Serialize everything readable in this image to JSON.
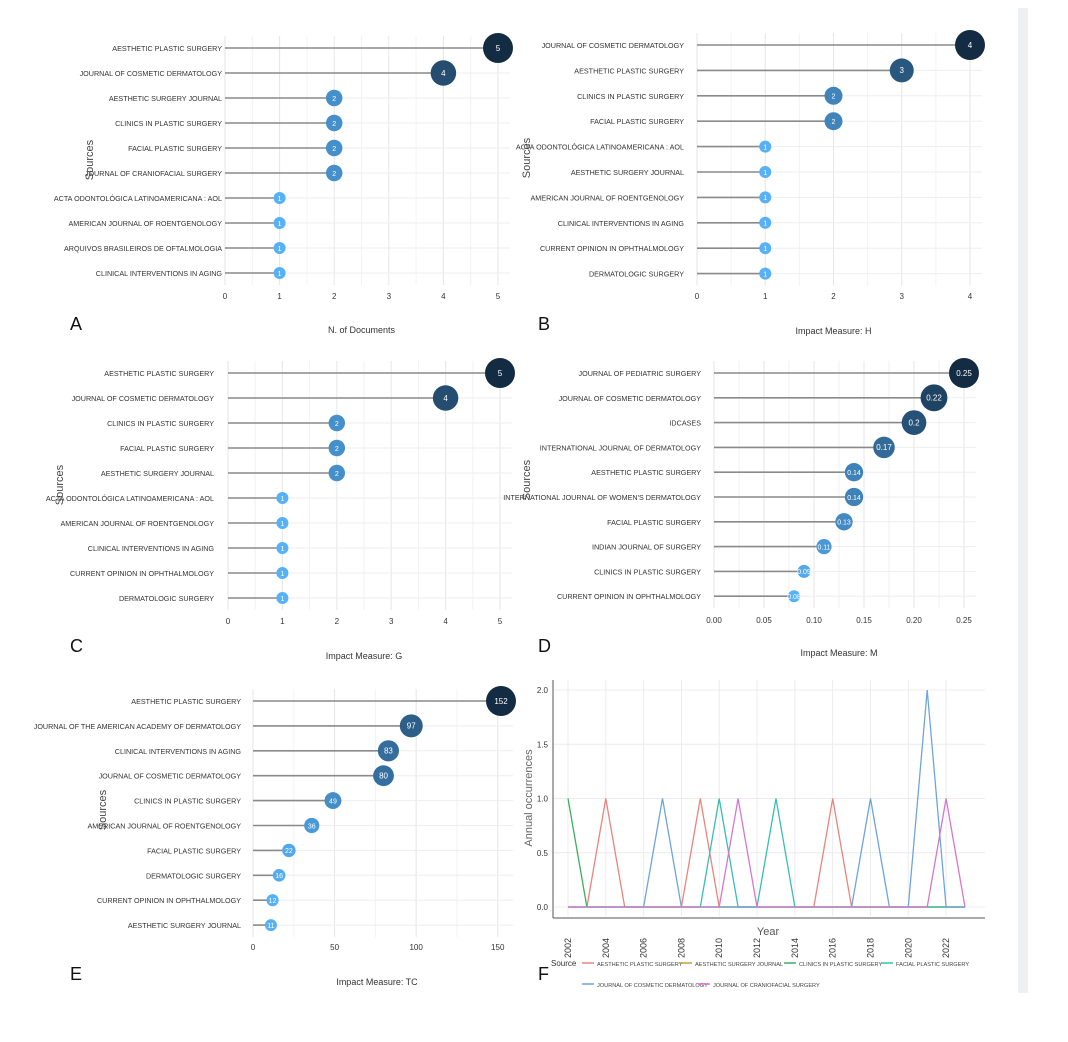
{
  "figure": {
    "panel_letters": [
      "A",
      "B",
      "C",
      "D",
      "E",
      "F"
    ]
  },
  "chart_data": [
    {
      "panel": "A",
      "type": "lollipop",
      "ylabel": "Sources",
      "xlabel": "N. of Documents",
      "xlim": [
        0,
        5
      ],
      "xticks": [
        "0",
        "1",
        "2",
        "3",
        "4",
        "5"
      ],
      "categories": [
        "AESTHETIC PLASTIC SURGERY",
        "JOURNAL OF COSMETIC DERMATOLOGY",
        "AESTHETIC SURGERY JOURNAL",
        "CLINICS IN PLASTIC SURGERY",
        "FACIAL PLASTIC SURGERY",
        "JOURNAL OF CRANIOFACIAL SURGERY",
        "ACTA ODONTOLÓGICA LATINOAMERICANA : AOL",
        "AMERICAN JOURNAL OF ROENTGENOLOGY",
        "ARQUIVOS BRASILEIROS DE OFTALMOLOGIA",
        "CLINICAL INTERVENTIONS IN AGING"
      ],
      "values": [
        5,
        4,
        2,
        2,
        2,
        2,
        1,
        1,
        1,
        1
      ],
      "labels": [
        "5",
        "4",
        "2",
        "2",
        "2",
        "2",
        "1",
        "1",
        "1",
        "1"
      ]
    },
    {
      "panel": "B",
      "type": "lollipop",
      "ylabel": "Sources",
      "xlabel": "Impact Measure: H",
      "xlim": [
        0,
        4
      ],
      "xticks": [
        "0",
        "1",
        "2",
        "3",
        "4"
      ],
      "categories": [
        "JOURNAL OF COSMETIC DERMATOLOGY",
        "AESTHETIC PLASTIC SURGERY",
        "CLINICS IN PLASTIC SURGERY",
        "FACIAL PLASTIC SURGERY",
        "ACTA ODONTOLÓGICA LATINOAMERICANA : AOL",
        "AESTHETIC SURGERY JOURNAL",
        "AMERICAN JOURNAL OF ROENTGENOLOGY",
        "CLINICAL INTERVENTIONS IN AGING",
        "CURRENT OPINION IN OPHTHALMOLOGY",
        "DERMATOLOGIC SURGERY"
      ],
      "values": [
        4,
        3,
        2,
        2,
        1,
        1,
        1,
        1,
        1,
        1
      ],
      "labels": [
        "4",
        "3",
        "2",
        "2",
        "1",
        "1",
        "1",
        "1",
        "1",
        "1"
      ]
    },
    {
      "panel": "C",
      "type": "lollipop",
      "ylabel": "Sources",
      "xlabel": "Impact Measure: G",
      "xlim": [
        0,
        5
      ],
      "xticks": [
        "0",
        "1",
        "2",
        "3",
        "4",
        "5"
      ],
      "categories": [
        "AESTHETIC PLASTIC SURGERY",
        "JOURNAL OF COSMETIC DERMATOLOGY",
        "CLINICS IN PLASTIC SURGERY",
        "FACIAL PLASTIC SURGERY",
        "AESTHETIC SURGERY JOURNAL",
        "ACTA ODONTOLÓGICA LATINOAMERICANA : AOL",
        "AMERICAN JOURNAL OF ROENTGENOLOGY",
        "CLINICAL INTERVENTIONS IN AGING",
        "CURRENT OPINION IN OPHTHALMOLOGY",
        "DERMATOLOGIC SURGERY"
      ],
      "values": [
        5,
        4,
        2,
        2,
        2,
        1,
        1,
        1,
        1,
        1
      ],
      "labels": [
        "5",
        "4",
        "2",
        "2",
        "2",
        "1",
        "1",
        "1",
        "1",
        "1"
      ]
    },
    {
      "panel": "D",
      "type": "lollipop",
      "ylabel": "Sources",
      "xlabel": "Impact Measure: M",
      "xlim": [
        0,
        0.25
      ],
      "xticks": [
        "0.00",
        "0.05",
        "0.10",
        "0.15",
        "0.20",
        "0.25"
      ],
      "categories": [
        "JOURNAL OF PEDIATRIC SURGERY",
        "JOURNAL OF COSMETIC DERMATOLOGY",
        "IDCASES",
        "INTERNATIONAL JOURNAL OF DERMATOLOGY",
        "AESTHETIC PLASTIC SURGERY",
        "INTERNATIONAL JOURNAL OF WOMEN'S DERMATOLOGY",
        "FACIAL PLASTIC SURGERY",
        "INDIAN JOURNAL OF SURGERY",
        "CLINICS IN PLASTIC SURGERY",
        "CURRENT OPINION IN OPHTHALMOLOGY"
      ],
      "values": [
        0.25,
        0.22,
        0.2,
        0.17,
        0.14,
        0.14,
        0.13,
        0.11,
        0.09,
        0.08
      ],
      "labels": [
        "0.25",
        "0.22",
        "0.2",
        "0.17",
        "0.14",
        "0.14",
        "0.13",
        "0.11",
        "0.09",
        "0.08"
      ]
    },
    {
      "panel": "E",
      "type": "lollipop",
      "ylabel": "Sources",
      "xlabel": "Impact Measure: TC",
      "xlim": [
        0,
        152
      ],
      "xticks": [
        "0",
        "50",
        "100",
        "150"
      ],
      "xtick_values": [
        0,
        50,
        100,
        150
      ],
      "categories": [
        "AESTHETIC PLASTIC SURGERY",
        "JOURNAL OF THE AMERICAN ACADEMY OF DERMATOLOGY",
        "CLINICAL INTERVENTIONS IN AGING",
        "JOURNAL OF COSMETIC DERMATOLOGY",
        "CLINICS IN PLASTIC SURGERY",
        "AMERICAN JOURNAL OF ROENTGENOLOGY",
        "FACIAL PLASTIC SURGERY",
        "DERMATOLOGIC SURGERY",
        "CURRENT OPINION IN OPHTHALMOLOGY",
        "AESTHETIC SURGERY JOURNAL"
      ],
      "values": [
        152,
        97,
        83,
        80,
        49,
        36,
        22,
        16,
        12,
        11
      ],
      "labels": [
        "152",
        "97",
        "83",
        "80",
        "49",
        "36",
        "22",
        "16",
        "12",
        "11"
      ]
    },
    {
      "panel": "F",
      "type": "line",
      "xlabel": "Year",
      "ylabel": "Annual occurrences",
      "ylim": [
        0,
        2
      ],
      "yticks": [
        "0.0",
        "0.5",
        "1.0",
        "1.5",
        "2.0"
      ],
      "ytick_values": [
        0,
        0.5,
        1,
        1.5,
        2
      ],
      "xticks": [
        "2002",
        "2004",
        "2006",
        "2008",
        "2010",
        "2012",
        "2014",
        "2016",
        "2018",
        "2020",
        "2022"
      ],
      "xtick_values": [
        2002,
        2004,
        2006,
        2008,
        2010,
        2012,
        2014,
        2016,
        2018,
        2020,
        2022
      ],
      "xlim": [
        2002,
        2023
      ],
      "legend_title": "Source",
      "legend_position": "bottom",
      "series": [
        {
          "name": "AESTHETIC PLASTIC SURGERY",
          "color": "#e8857c",
          "points": [
            [
              2002,
              0
            ],
            [
              2003,
              0
            ],
            [
              2004,
              1
            ],
            [
              2005,
              0
            ],
            [
              2008,
              0
            ],
            [
              2009,
              1
            ],
            [
              2010,
              0
            ],
            [
              2015,
              0
            ],
            [
              2016,
              1
            ],
            [
              2017,
              0
            ],
            [
              2023,
              0
            ]
          ]
        },
        {
          "name": "AESTHETIC SURGERY JOURNAL",
          "color": "#c2a036",
          "points": [
            [
              2002,
              0
            ],
            [
              2023,
              0
            ]
          ]
        },
        {
          "name": "CLINICS IN PLASTIC SURGERY",
          "color": "#3fae5c",
          "points": [
            [
              2002,
              1
            ],
            [
              2003,
              0
            ],
            [
              2023,
              0
            ]
          ]
        },
        {
          "name": "FACIAL PLASTIC SURGERY",
          "color": "#38bfb3",
          "points": [
            [
              2002,
              0
            ],
            [
              2009,
              0
            ],
            [
              2010,
              1
            ],
            [
              2011,
              0
            ],
            [
              2012,
              0
            ],
            [
              2013,
              1
            ],
            [
              2014,
              0
            ],
            [
              2023,
              0
            ]
          ]
        },
        {
          "name": "JOURNAL OF COSMETIC DERMATOLOGY",
          "color": "#6ea5dc",
          "points": [
            [
              2002,
              0
            ],
            [
              2006,
              0
            ],
            [
              2007,
              1
            ],
            [
              2008,
              0
            ],
            [
              2009,
              0
            ],
            [
              2010,
              0
            ],
            [
              2011,
              0
            ],
            [
              2017,
              0
            ],
            [
              2018,
              1
            ],
            [
              2019,
              0
            ],
            [
              2020,
              0
            ],
            [
              2021,
              2
            ],
            [
              2022,
              0
            ],
            [
              2023,
              0
            ]
          ]
        },
        {
          "name": "JOURNAL OF CRANIOFACIAL SURGERY",
          "color": "#d577d0",
          "points": [
            [
              2002,
              0
            ],
            [
              2010,
              0
            ],
            [
              2011,
              1
            ],
            [
              2012,
              0
            ],
            [
              2021,
              0
            ],
            [
              2022,
              1
            ],
            [
              2023,
              0
            ]
          ]
        }
      ]
    }
  ]
}
